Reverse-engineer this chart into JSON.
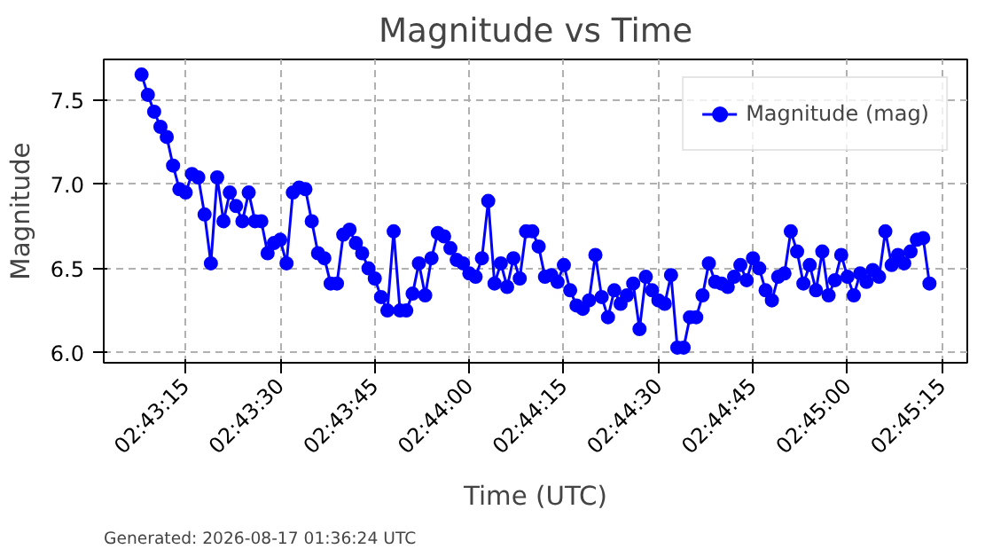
{
  "chart_data": {
    "type": "line",
    "title": "Magnitude vs Time",
    "xlabel": "Time (UTC)",
    "ylabel": "Magnitude",
    "annotations": [
      "Generated: 2026-08-17 01:36:24 UTC"
    ],
    "x": [
      "2026-08-17T02:43:08",
      "2026-08-17T02:43:09",
      "2026-08-17T02:43:10",
      "2026-08-17T02:43:11",
      "2026-08-17T02:43:12",
      "2026-08-17T02:43:13",
      "2026-08-17T02:43:14",
      "2026-08-17T02:43:15",
      "2026-08-17T02:43:16",
      "2026-08-17T02:43:17",
      "2026-08-17T02:43:18",
      "2026-08-17T02:43:19",
      "2026-08-17T02:43:20",
      "2026-08-17T02:43:21",
      "2026-08-17T02:43:22",
      "2026-08-17T02:43:23",
      "2026-08-17T02:43:24",
      "2026-08-17T02:43:25",
      "2026-08-17T02:43:26",
      "2026-08-17T02:43:27",
      "2026-08-17T02:43:28",
      "2026-08-17T02:43:29",
      "2026-08-17T02:43:30",
      "2026-08-17T02:43:31",
      "2026-08-17T02:43:32",
      "2026-08-17T02:43:33",
      "2026-08-17T02:43:34",
      "2026-08-17T02:43:35",
      "2026-08-17T02:43:36",
      "2026-08-17T02:43:37",
      "2026-08-17T02:43:38",
      "2026-08-17T02:43:39",
      "2026-08-17T02:43:40",
      "2026-08-17T02:43:41",
      "2026-08-17T02:43:42",
      "2026-08-17T02:43:43",
      "2026-08-17T02:43:44",
      "2026-08-17T02:43:45",
      "2026-08-17T02:43:46",
      "2026-08-17T02:43:47",
      "2026-08-17T02:43:48",
      "2026-08-17T02:43:49",
      "2026-08-17T02:43:50",
      "2026-08-17T02:43:51",
      "2026-08-17T02:43:52",
      "2026-08-17T02:43:53",
      "2026-08-17T02:43:54",
      "2026-08-17T02:43:55",
      "2026-08-17T02:43:56",
      "2026-08-17T02:43:57",
      "2026-08-17T02:43:58",
      "2026-08-17T02:43:59",
      "2026-08-17T02:44:00",
      "2026-08-17T02:44:01",
      "2026-08-17T02:44:02",
      "2026-08-17T02:44:03",
      "2026-08-17T02:44:04",
      "2026-08-17T02:44:05",
      "2026-08-17T02:44:06",
      "2026-08-17T02:44:07",
      "2026-08-17T02:44:08",
      "2026-08-17T02:44:09",
      "2026-08-17T02:44:10",
      "2026-08-17T02:44:11",
      "2026-08-17T02:44:12",
      "2026-08-17T02:44:13",
      "2026-08-17T02:44:14",
      "2026-08-17T02:44:15",
      "2026-08-17T02:44:16",
      "2026-08-17T02:44:17",
      "2026-08-17T02:44:18",
      "2026-08-17T02:44:19",
      "2026-08-17T02:44:20",
      "2026-08-17T02:44:21",
      "2026-08-17T02:44:22",
      "2026-08-17T02:44:23",
      "2026-08-17T02:44:24",
      "2026-08-17T02:44:25",
      "2026-08-17T02:44:26",
      "2026-08-17T02:44:27",
      "2026-08-17T02:44:28",
      "2026-08-17T02:44:29",
      "2026-08-17T02:44:30",
      "2026-08-17T02:44:31",
      "2026-08-17T02:44:32",
      "2026-08-17T02:44:33",
      "2026-08-17T02:44:34",
      "2026-08-17T02:44:35",
      "2026-08-17T02:44:36",
      "2026-08-17T02:44:37",
      "2026-08-17T02:44:38",
      "2026-08-17T02:44:39",
      "2026-08-17T02:44:40",
      "2026-08-17T02:44:41",
      "2026-08-17T02:44:42",
      "2026-08-17T02:44:43",
      "2026-08-17T02:44:44",
      "2026-08-17T02:44:45",
      "2026-08-17T02:44:46",
      "2026-08-17T02:44:47",
      "2026-08-17T02:44:48",
      "2026-08-17T02:44:49",
      "2026-08-17T02:44:50",
      "2026-08-17T02:44:51",
      "2026-08-17T02:44:52",
      "2026-08-17T02:44:53",
      "2026-08-17T02:44:54",
      "2026-08-17T02:44:55",
      "2026-08-17T02:44:56",
      "2026-08-17T02:44:57",
      "2026-08-17T02:44:58",
      "2026-08-17T02:44:59",
      "2026-08-17T02:45:00",
      "2026-08-17T02:45:01",
      "2026-08-17T02:45:02",
      "2026-08-17T02:45:03",
      "2026-08-17T02:45:04",
      "2026-08-17T02:45:05",
      "2026-08-17T02:45:06",
      "2026-08-17T02:45:07",
      "2026-08-17T02:45:08",
      "2026-08-17T02:45:09",
      "2026-08-17T02:45:10",
      "2026-08-17T02:45:11",
      "2026-08-17T02:45:12",
      "2026-08-17T02:45:13"
    ],
    "series": [
      {
        "name": "Magnitude (mag)",
        "color": "#0000ff",
        "values": [
          7.65,
          7.53,
          7.43,
          7.34,
          7.28,
          7.11,
          6.97,
          6.95,
          7.06,
          7.04,
          6.82,
          6.53,
          7.04,
          6.78,
          6.95,
          6.87,
          6.78,
          6.95,
          6.78,
          6.78,
          6.59,
          6.65,
          6.67,
          6.53,
          6.95,
          6.98,
          6.97,
          6.78,
          6.59,
          6.56,
          6.41,
          6.41,
          6.7,
          6.73,
          6.65,
          6.59,
          6.5,
          6.44,
          6.33,
          6.25,
          6.72,
          6.25,
          6.25,
          6.35,
          6.53,
          6.34,
          6.56,
          6.71,
          6.69,
          6.62,
          6.55,
          6.53,
          6.47,
          6.45,
          6.56,
          6.9,
          6.41,
          6.53,
          6.39,
          6.56,
          6.44,
          6.72,
          6.72,
          6.63,
          6.45,
          6.46,
          6.42,
          6.52,
          6.37,
          6.28,
          6.26,
          6.31,
          6.58,
          6.33,
          6.21,
          6.37,
          6.29,
          6.34,
          6.41,
          6.14,
          6.45,
          6.37,
          6.31,
          6.29,
          6.46,
          6.03,
          6.03,
          6.21,
          6.21,
          6.34,
          6.53,
          6.42,
          6.41,
          6.39,
          6.45,
          6.52,
          6.43,
          6.56,
          6.5,
          6.37,
          6.31,
          6.45,
          6.47,
          6.72,
          6.6,
          6.41,
          6.52,
          6.37,
          6.6,
          6.34,
          6.43,
          6.58,
          6.45,
          6.34,
          6.47,
          6.42,
          6.49,
          6.45,
          6.72,
          6.52,
          6.58,
          6.53,
          6.6,
          6.67,
          6.68,
          6.41
        ]
      }
    ],
    "xlim": [
      "2026-08-17T02:43:02",
      "2026-08-17T02:45:19"
    ],
    "xticks": [
      {
        "value": "2026-08-17T02:43:15",
        "label": "02:43:15"
      },
      {
        "value": "2026-08-17T02:43:30",
        "label": "02:43:30"
      },
      {
        "value": "2026-08-17T02:43:45",
        "label": "02:43:45"
      },
      {
        "value": "2026-08-17T02:44:00",
        "label": "02:44:00"
      },
      {
        "value": "2026-08-17T02:44:15",
        "label": "02:44:15"
      },
      {
        "value": "2026-08-17T02:44:30",
        "label": "02:44:30"
      },
      {
        "value": "2026-08-17T02:44:45",
        "label": "02:44:45"
      },
      {
        "value": "2026-08-17T02:45:00",
        "label": "02:45:00"
      },
      {
        "value": "2026-08-17T02:45:15",
        "label": "02:45:15"
      }
    ],
    "ylim": [
      5.94,
      7.74
    ],
    "yticks": [
      {
        "value": 6,
        "label": "6.0"
      },
      {
        "value": 6.5,
        "label": "6.5"
      },
      {
        "value": 7,
        "label": "7.0"
      },
      {
        "value": 7.5,
        "label": "7.5"
      }
    ],
    "grid": true,
    "legend": "top right",
    "marker": "circle",
    "line_style": "solid"
  }
}
